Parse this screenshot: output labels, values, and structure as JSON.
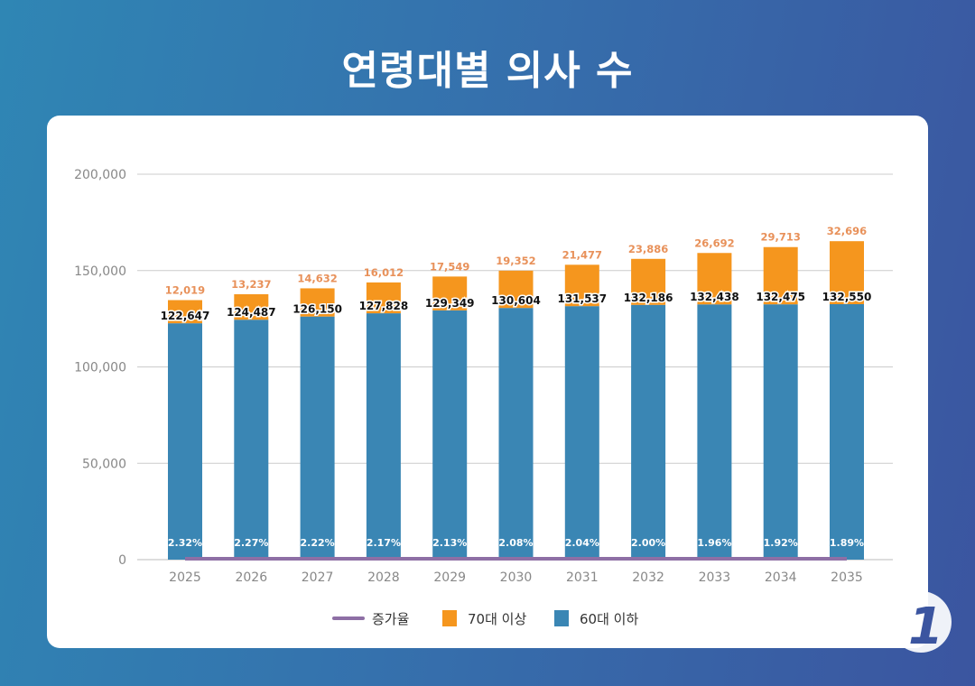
{
  "title": "연령대별 의사 수",
  "logo_text": "news1",
  "chart_data": {
    "type": "bar",
    "stacked": true,
    "categories": [
      "2025",
      "2026",
      "2027",
      "2028",
      "2029",
      "2030",
      "2031",
      "2032",
      "2033",
      "2034",
      "2035"
    ],
    "series": [
      {
        "name": "60대 이하",
        "color": "#3a86b4",
        "values": [
          122647,
          124487,
          126150,
          127828,
          129349,
          130604,
          131537,
          132186,
          132438,
          132475,
          132550
        ]
      },
      {
        "name": "70대 이상",
        "color": "#f5961e",
        "values": [
          12019,
          13237,
          14632,
          16012,
          17549,
          19352,
          21477,
          23886,
          26692,
          29713,
          32696
        ]
      },
      {
        "name": "증가율",
        "type": "line",
        "color": "#8e6fa5",
        "unit": "%",
        "values": [
          2.32,
          2.27,
          2.22,
          2.17,
          2.13,
          2.08,
          2.04,
          2.0,
          1.96,
          1.92,
          1.89
        ]
      }
    ],
    "ylim": [
      0,
      200000
    ],
    "yticks": [
      "0",
      "50,000",
      "100,000",
      "150,000",
      "200,000"
    ],
    "grid": true,
    "legend": "bottom",
    "legend_order": [
      "증가율",
      "70대 이상",
      "60대 이하"
    ]
  }
}
